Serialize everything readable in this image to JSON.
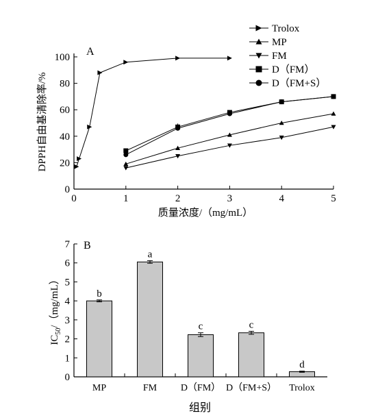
{
  "chart_data": [
    {
      "type": "line",
      "panel_label": "A",
      "xlabel": "质量浓度/（mg/mL）",
      "ylabel": "DPPH自由基清除率/%",
      "xlim": [
        0,
        5
      ],
      "ylim": [
        0,
        100
      ],
      "x_ticks": [
        "0",
        "1",
        "2",
        "3",
        "4",
        "5"
      ],
      "y_ticks": [
        "0",
        "20",
        "40",
        "60",
        "80",
        "100"
      ],
      "legend_position": "top-right",
      "series": [
        {
          "name": "Trolox",
          "marker": "triangle-right",
          "x": [
            0.05,
            0.1,
            0.3,
            0.5,
            1,
            2,
            3
          ],
          "y": [
            17,
            23,
            47,
            88,
            96,
            99,
            99
          ]
        },
        {
          "name": "MP",
          "marker": "triangle-up",
          "x": [
            1,
            2,
            3,
            4,
            5
          ],
          "y": [
            19,
            31,
            41,
            50,
            57
          ]
        },
        {
          "name": "FM",
          "marker": "triangle-down",
          "x": [
            1,
            2,
            3,
            4,
            5
          ],
          "y": [
            16,
            25,
            33,
            39,
            47
          ]
        },
        {
          "name": "D（FM）",
          "marker": "square",
          "x": [
            1,
            2,
            3,
            4,
            5
          ],
          "y": [
            29,
            47,
            58,
            66,
            70
          ]
        },
        {
          "name": "D（FM+S）",
          "marker": "circle",
          "x": [
            1,
            2,
            3,
            4,
            5
          ],
          "y": [
            26,
            46,
            57,
            66,
            70
          ]
        }
      ]
    },
    {
      "type": "bar",
      "panel_label": "B",
      "xlabel": "组别",
      "ylabel_main": "IC",
      "ylabel_sub": "50",
      "ylabel_rest": "/（mg/mL）",
      "ylim": [
        0,
        7
      ],
      "y_ticks": [
        "0",
        "1",
        "2",
        "3",
        "4",
        "5",
        "6",
        "7"
      ],
      "categories": [
        "MP",
        "FM",
        "D（FM）",
        "D（FM+S）",
        "Trolox"
      ],
      "values": [
        4.0,
        6.05,
        2.22,
        2.32,
        0.27
      ],
      "errors": [
        0.05,
        0.07,
        0.1,
        0.08,
        0.03
      ],
      "significance": [
        "b",
        "a",
        "c",
        "c",
        "d"
      ],
      "bar_color": "#c8c8c8"
    }
  ]
}
